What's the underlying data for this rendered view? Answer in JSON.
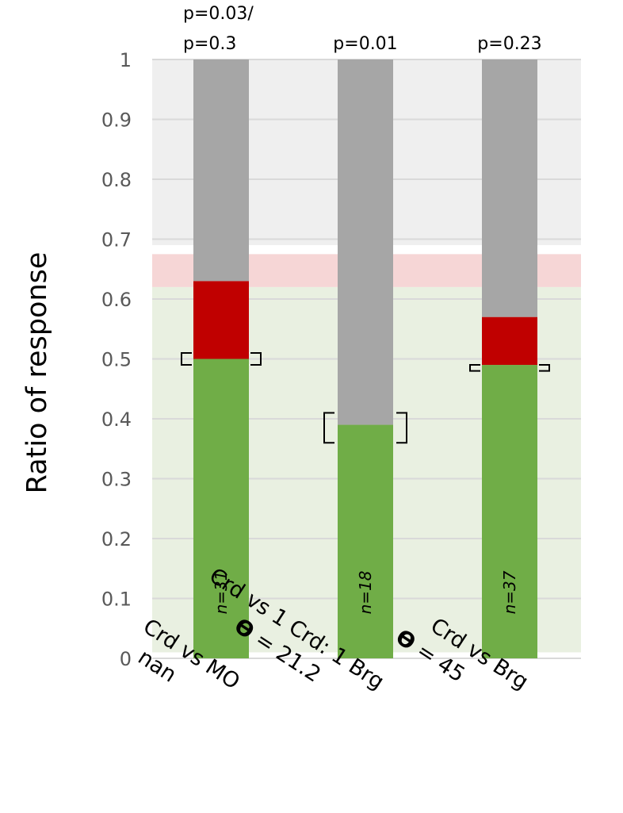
{
  "chart_data": {
    "type": "bar",
    "stacked": true,
    "ylabel": "Ratio of response",
    "xlabel": "",
    "ylim": [
      0,
      1
    ],
    "yticks": [
      "0",
      "0.1",
      "0.2",
      "0.3",
      "0.4",
      "0.5",
      "0.6",
      "0.7",
      "0.8",
      "0.9",
      "1"
    ],
    "grid": true,
    "background_bands": [
      {
        "from": 0.01,
        "to": 0.62,
        "color": "#e9f0e1"
      },
      {
        "from": 0.62,
        "to": 0.675,
        "color": "#f6d6d6"
      },
      {
        "from": 0.69,
        "to": 1.0,
        "color": "#efefef"
      }
    ],
    "colors": {
      "green": "#70ad47",
      "red": "#c00000",
      "gray": "#a6a6a6"
    },
    "categories": [
      {
        "line1": "Crd vs MO",
        "line2": "nan",
        "theta_prefix": "",
        "line2_value": "nan"
      },
      {
        "line1": "Crd vs 1 Crd: 1 Brg",
        "line2": "ϴ = 21.2",
        "theta_prefix": "ϴ",
        "line2_value": " = 21.2"
      },
      {
        "line1": "Crd vs Brg",
        "line2": "ϴ = 45",
        "theta_prefix": "ϴ",
        "line2_value": " = 45"
      }
    ],
    "series": [
      {
        "color": "green",
        "values": [
          0.5,
          0.39,
          0.49
        ]
      },
      {
        "color": "red",
        "values": [
          0.13,
          0.0,
          0.08
        ]
      },
      {
        "color": "gray",
        "values": [
          0.37,
          0.61,
          0.43
        ]
      }
    ],
    "error_brackets": [
      {
        "center": 0.5,
        "low": 0.49,
        "high": 0.51
      },
      {
        "center": 0.39,
        "low": 0.36,
        "high": 0.41
      },
      {
        "center": 0.49,
        "low": 0.48,
        "high": 0.49
      }
    ],
    "n_labels": [
      "n=31",
      "n=18",
      "n=37"
    ],
    "p_labels": [
      [
        "p=0.03/",
        "p=0.3"
      ],
      [
        "p=0.01"
      ],
      [
        "p=0.23"
      ]
    ]
  }
}
